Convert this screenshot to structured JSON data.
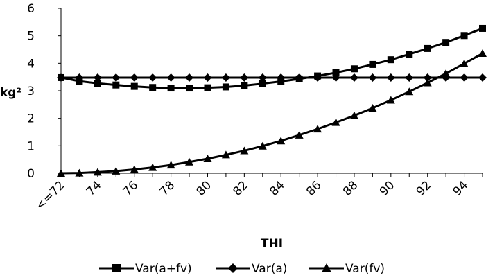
{
  "chart_data": {
    "type": "line",
    "xlabel": "THI",
    "ylabel": "kg²",
    "ylim": [
      0,
      6
    ],
    "yticks": [
      0,
      1,
      2,
      3,
      4,
      5,
      6
    ],
    "x_tick_labels": [
      "<=72",
      "74",
      "76",
      "78",
      "80",
      "82",
      "84",
      "86",
      "88",
      "90",
      "92",
      "94"
    ],
    "x_tick_values": [
      72,
      74,
      76,
      78,
      80,
      82,
      84,
      86,
      88,
      90,
      92,
      94
    ],
    "x": [
      72,
      73,
      74,
      75,
      76,
      77,
      78,
      79,
      80,
      81,
      82,
      83,
      84,
      85,
      86,
      87,
      88,
      89,
      90,
      91,
      92,
      93,
      94,
      95
    ],
    "xlim": [
      72,
      95
    ],
    "grid": false,
    "legend_position": "bottom",
    "series": [
      {
        "name": "Var(a+fv)",
        "marker": "square",
        "values": [
          3.48,
          3.35,
          3.27,
          3.21,
          3.16,
          3.12,
          3.1,
          3.1,
          3.11,
          3.14,
          3.19,
          3.26,
          3.34,
          3.43,
          3.54,
          3.66,
          3.8,
          3.96,
          4.13,
          4.33,
          4.54,
          4.76,
          5.01,
          5.27
        ]
      },
      {
        "name": "Var(a)",
        "marker": "diamond",
        "values": [
          3.48,
          3.48,
          3.48,
          3.48,
          3.48,
          3.48,
          3.48,
          3.48,
          3.48,
          3.48,
          3.48,
          3.48,
          3.48,
          3.48,
          3.48,
          3.48,
          3.48,
          3.48,
          3.48,
          3.48,
          3.48,
          3.48,
          3.48,
          3.48
        ]
      },
      {
        "name": "Var(fv)",
        "marker": "triangle",
        "values": [
          0.0,
          0.01,
          0.04,
          0.08,
          0.14,
          0.21,
          0.3,
          0.41,
          0.53,
          0.67,
          0.82,
          0.99,
          1.18,
          1.39,
          1.61,
          1.85,
          2.1,
          2.37,
          2.66,
          2.97,
          3.29,
          3.63,
          3.99,
          4.36
        ]
      }
    ]
  },
  "colors": {
    "series": "#000000",
    "axis": "#000000",
    "background": "#ffffff"
  }
}
